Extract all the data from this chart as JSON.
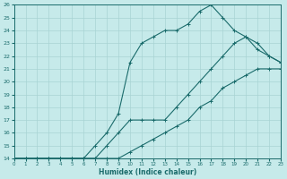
{
  "xlabel": "Humidex (Indice chaleur)",
  "bg_color": "#c6eaea",
  "line_color": "#1a6b6b",
  "grid_color": "#a8d4d4",
  "x_min": 0,
  "x_max": 23,
  "y_min": 14,
  "y_max": 26,
  "line1_x": [
    0,
    1,
    2,
    3,
    4,
    5,
    6,
    7,
    8,
    9,
    10,
    11,
    12,
    13,
    14,
    15,
    16,
    17,
    18,
    19,
    20,
    21,
    22,
    23
  ],
  "line1_y": [
    14,
    14,
    14,
    14,
    14,
    14,
    14,
    14,
    14,
    14,
    14.5,
    15,
    15.5,
    16,
    16.5,
    17,
    18,
    18.5,
    19.5,
    20,
    20.5,
    21,
    21,
    21
  ],
  "line2_x": [
    0,
    1,
    2,
    3,
    4,
    5,
    6,
    7,
    8,
    9,
    10,
    11,
    12,
    13,
    14,
    15,
    16,
    17,
    18,
    19,
    20,
    21,
    22,
    23
  ],
  "line2_y": [
    14,
    14,
    14,
    14,
    14,
    14,
    14,
    14,
    15,
    16,
    17,
    17,
    17,
    17,
    18,
    19,
    20,
    21,
    22,
    23,
    23.5,
    22.5,
    22,
    21.5
  ],
  "line3_x": [
    0,
    1,
    2,
    3,
    4,
    5,
    6,
    7,
    8,
    9,
    10,
    11,
    12,
    13,
    14,
    15,
    16,
    17,
    18,
    19,
    20,
    21,
    22,
    23
  ],
  "line3_y": [
    14,
    14,
    14,
    14,
    14,
    14,
    14,
    15,
    16,
    17.5,
    21.5,
    23,
    23.5,
    24,
    24,
    24.5,
    25.5,
    26,
    25,
    24,
    23.5,
    23,
    22,
    21.5
  ]
}
